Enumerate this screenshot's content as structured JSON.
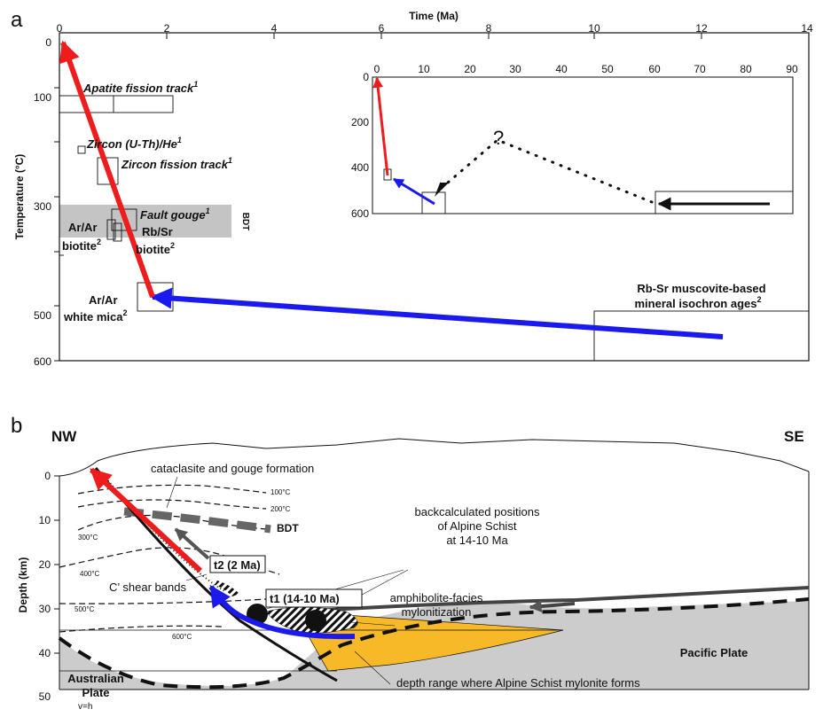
{
  "panel_a": {
    "panel_label": "a",
    "x_axis_title": "Time (Ma)",
    "x_ticks": [
      "0",
      "2",
      "4",
      "6",
      "8",
      "10",
      "12",
      "14"
    ],
    "y_axis_title": "Temperature (°C)",
    "y_ticks": [
      "0",
      "100",
      "300",
      "500",
      "600"
    ],
    "labels": {
      "apatite": "Apatite fission track",
      "zircon_he": "Zircon (U-Th)/He",
      "zircon_ft": "Zircon fission track",
      "fault_gouge": "Fault gouge",
      "ar_biotite_1": "Ar/Ar",
      "ar_biotite_2": "biotite",
      "rb_sr_1": "Rb/Sr",
      "rb_sr_2": "biotite",
      "bdt": "BDT",
      "white_mica_1": "Ar/Ar",
      "white_mica_2": "white mica",
      "muscovite_1": "Rb-Sr muscovite-based",
      "muscovite_2": "mineral isochron ages",
      "sup1": "1",
      "sup2": "2"
    },
    "inset": {
      "x_ticks": [
        "0",
        "10",
        "20",
        "30",
        "40",
        "50",
        "60",
        "70",
        "80",
        "90"
      ],
      "y_ticks": [
        "0",
        "200",
        "400",
        "600"
      ],
      "question": "?"
    }
  },
  "panel_b": {
    "panel_label": "b",
    "nw": "NW",
    "se": "SE",
    "y_axis_title": "Depth (km)",
    "y_ticks": [
      "0",
      "10",
      "20",
      "30",
      "40",
      "50"
    ],
    "isotherms": [
      "100°C",
      "200°C",
      "300°C",
      "400°C",
      "500°C",
      "600°C"
    ],
    "labels": {
      "cataclasite": "cataclasite and gouge formation",
      "bdt": "BDT",
      "backcalc_1": "backcalculated positions",
      "backcalc_2": "of Alpine Schist",
      "backcalc_3": "at 14-10 Ma",
      "t2": "t2 (2 Ma)",
      "t1": "t1 (14-10 Ma)",
      "cshear": "C’ shear bands",
      "amph_1": "amphibolite-facies",
      "amph_2": "mylonitization",
      "pacific": "Pacific Plate",
      "australian_1": "Australian",
      "australian_2": "Plate",
      "depth_range": "depth range where Alpine Schist mylonite forms",
      "vh": "v=h"
    }
  },
  "colors": {
    "red_arrow": "#ee1c1c",
    "blue_arrow": "#1a1aee",
    "schist_fill": "#f7b928",
    "plate_fill": "#cccccc",
    "bdt_band": "#c4c4c4"
  }
}
